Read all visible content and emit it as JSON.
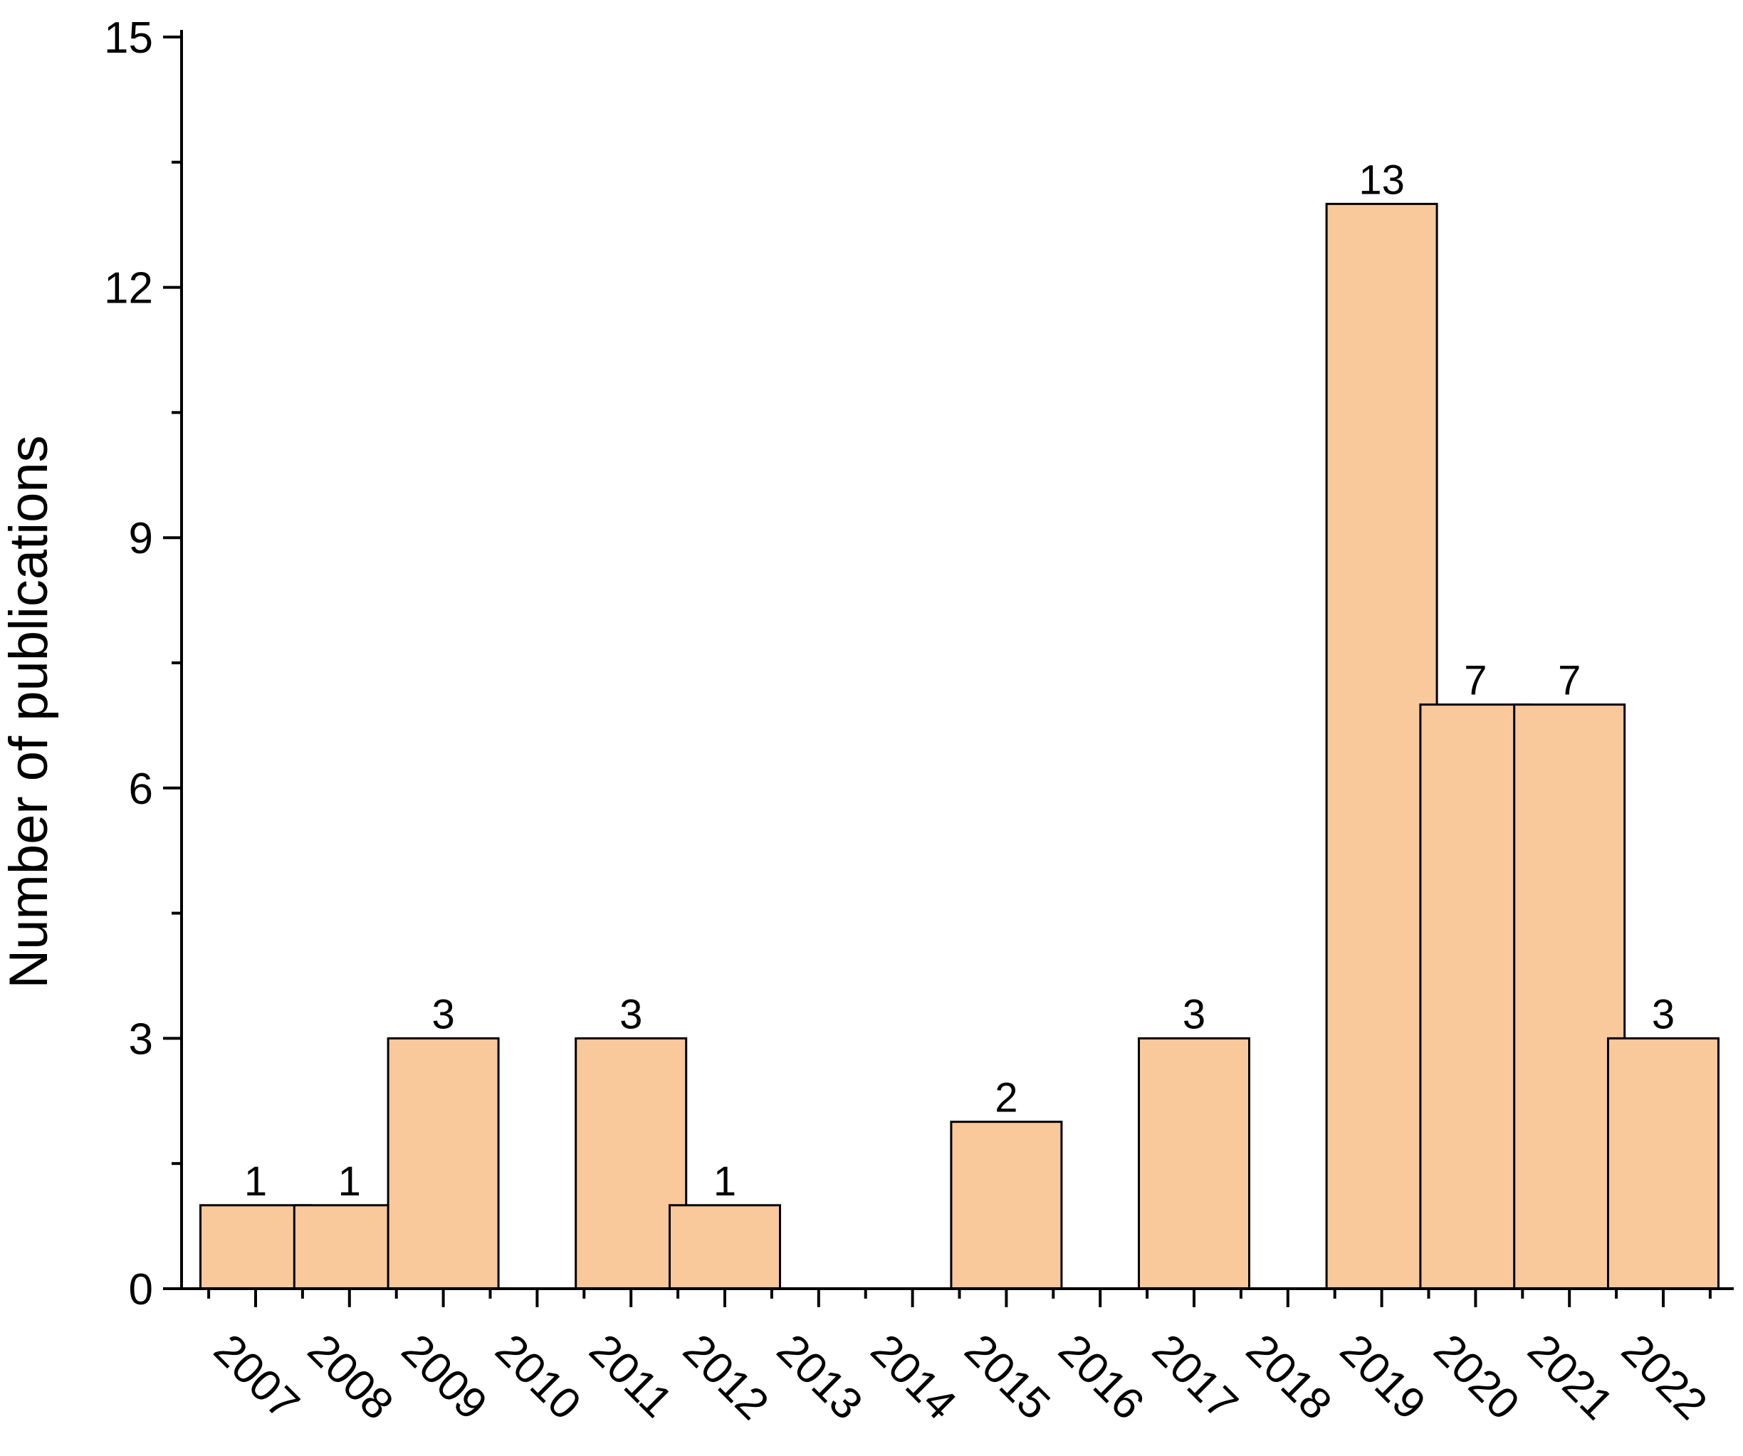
{
  "chart_data": {
    "type": "bar",
    "title": "",
    "xlabel": "",
    "ylabel": "Number of publications",
    "ylim": [
      0,
      15
    ],
    "yticks": [
      0,
      3,
      6,
      9,
      12,
      15
    ],
    "categories": [
      "2007",
      "2008",
      "2009",
      "2010",
      "2011",
      "2012",
      "2013",
      "2014",
      "2015",
      "2016",
      "2017",
      "2018",
      "2019",
      "2020",
      "2021",
      "2022"
    ],
    "values": [
      1,
      1,
      3,
      0,
      3,
      1,
      0,
      0,
      2,
      0,
      3,
      0,
      13,
      7,
      7,
      3
    ],
    "data_labels": [
      "1",
      "1",
      "3",
      "",
      "3",
      "1",
      "",
      "",
      "2",
      "",
      "3",
      "",
      "13",
      "7",
      "7",
      "3"
    ],
    "bar_color": "#f9c89b",
    "bar_edge_color": "#000000",
    "grid": false,
    "legend": "none"
  }
}
